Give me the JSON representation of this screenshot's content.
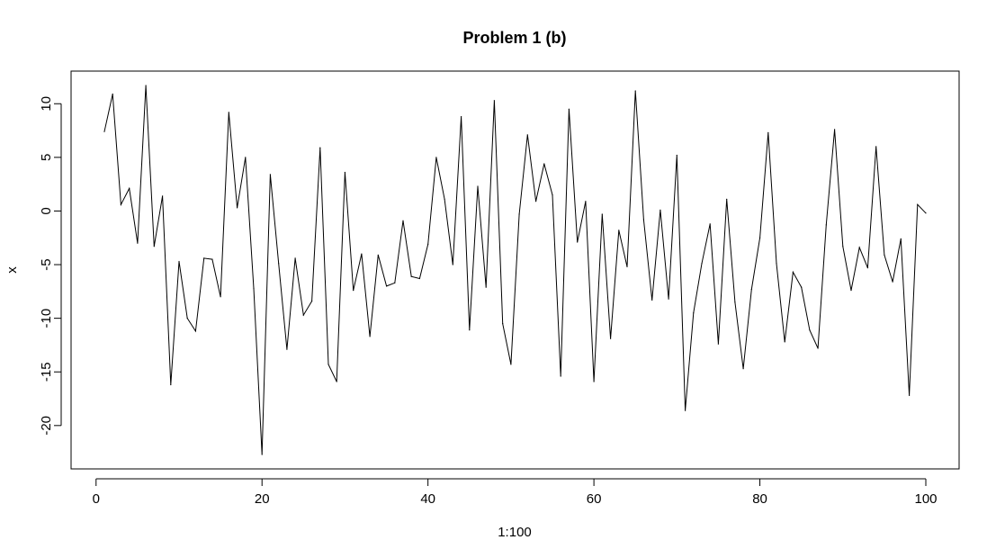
{
  "chart_data": {
    "type": "line",
    "title": "Problem 1 (b)",
    "xlabel": "1:100",
    "ylabel": "x",
    "xlim": [
      1,
      100
    ],
    "ylim": [
      -22.7,
      11.7
    ],
    "x_ticks": [
      0,
      20,
      40,
      60,
      80,
      100
    ],
    "y_ticks": [
      10,
      5,
      0,
      -5,
      -10,
      -15,
      -20
    ],
    "grid": false,
    "line_color": "#000000",
    "x": [
      1,
      2,
      3,
      4,
      5,
      6,
      7,
      8,
      9,
      10,
      11,
      12,
      13,
      14,
      15,
      16,
      17,
      18,
      19,
      20,
      21,
      22,
      23,
      24,
      25,
      26,
      27,
      28,
      29,
      30,
      31,
      32,
      33,
      34,
      35,
      36,
      37,
      38,
      39,
      40,
      41,
      42,
      43,
      44,
      45,
      46,
      47,
      48,
      49,
      50,
      51,
      52,
      53,
      54,
      55,
      56,
      57,
      58,
      59,
      60,
      61,
      62,
      63,
      64,
      65,
      66,
      67,
      68,
      69,
      70,
      71,
      72,
      73,
      74,
      75,
      76,
      77,
      78,
      79,
      80,
      81,
      82,
      83,
      84,
      85,
      86,
      87,
      88,
      89,
      90,
      91,
      92,
      93,
      94,
      95,
      96,
      97,
      98,
      99,
      100
    ],
    "series": [
      {
        "values": [
          7.4,
          10.9,
          0.6,
          2.1,
          -3.0,
          11.7,
          -3.3,
          1.4,
          -16.2,
          -4.7,
          -10.0,
          -11.2,
          -4.4,
          -4.5,
          -8.0,
          9.2,
          0.3,
          5.0,
          -7.2,
          -22.7,
          3.4,
          -4.9,
          -12.9,
          -4.4,
          -9.7,
          -8.4,
          5.9,
          -14.3,
          -15.9,
          3.6,
          -7.4,
          -4.0,
          -11.7,
          -4.1,
          -7.0,
          -6.7,
          -0.9,
          -6.1,
          -6.3,
          -3.1,
          5.0,
          1.1,
          -5.0,
          8.8,
          -11.1,
          2.3,
          -7.1,
          10.3,
          -10.5,
          -14.3,
          -0.3,
          7.1,
          0.9,
          4.4,
          1.5,
          -15.4,
          9.5,
          -2.9,
          0.9,
          -15.9,
          -0.3,
          -11.9,
          -1.8,
          -5.2,
          11.2,
          -0.8,
          -8.3,
          0.1,
          -8.2,
          5.2,
          -18.6,
          -9.5,
          -4.9,
          -1.2,
          -12.4,
          1.1,
          -8.5,
          -14.7,
          -7.3,
          -2.5,
          7.3,
          -4.9,
          -12.2,
          -5.7,
          -7.1,
          -11.1,
          -12.8,
          -1.3,
          7.6,
          -3.3,
          -7.4,
          -3.4,
          -5.3,
          6.0,
          -4.1,
          -6.6,
          -2.6,
          -17.2,
          0.6,
          -0.2
        ]
      }
    ]
  }
}
